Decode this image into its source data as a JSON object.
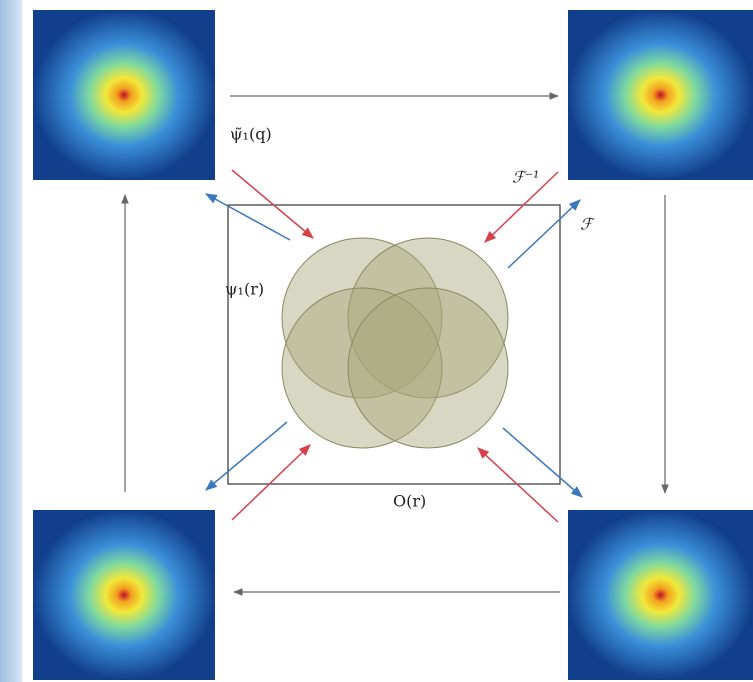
{
  "labels": {
    "psi_q": "ψ̃₁(q)",
    "f_inv": "ℱ⁻¹",
    "f": "ℱ",
    "psi_r": "ψ₁(r)",
    "object": "O(r)"
  }
}
